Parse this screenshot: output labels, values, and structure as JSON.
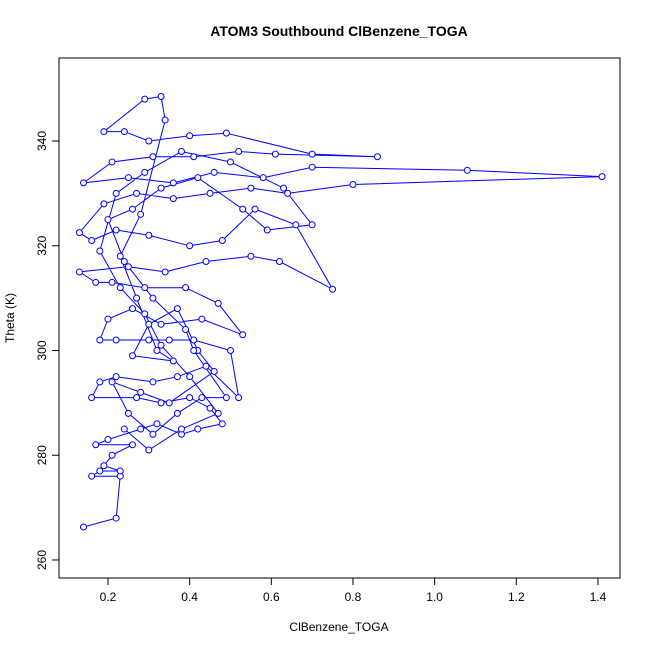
{
  "chart_data": {
    "type": "line",
    "title": "ATOM3 Southbound ClBenzene_TOGA",
    "xlabel": "ClBenzene_TOGA",
    "ylabel": "Theta (K)",
    "color": "#0000ff",
    "x": [
      0.14,
      0.22,
      0.23,
      0.16,
      0.18,
      0.23,
      0.19,
      0.21,
      0.26,
      0.17,
      0.2,
      0.28,
      0.32,
      0.38,
      0.42,
      0.48,
      0.45,
      0.4,
      0.33,
      0.27,
      0.16,
      0.18,
      0.22,
      0.31,
      0.37,
      0.44,
      0.52,
      0.5,
      0.41,
      0.35,
      0.3,
      0.22,
      0.18,
      0.2,
      0.26,
      0.33,
      0.43,
      0.53,
      0.47,
      0.39,
      0.29,
      0.21,
      0.17,
      0.13,
      0.25,
      0.34,
      0.44,
      0.55,
      0.62,
      0.75,
      0.66,
      0.56,
      0.48,
      0.4,
      0.3,
      0.22,
      0.16,
      0.13,
      0.19,
      0.27,
      0.36,
      0.45,
      0.55,
      0.64,
      0.8,
      1.41,
      1.08,
      0.7,
      0.58,
      0.46,
      0.36,
      0.25,
      0.14,
      0.21,
      0.31,
      0.41,
      0.52,
      0.61,
      0.86,
      0.7,
      0.49,
      0.4,
      0.3,
      0.24,
      0.19,
      0.29,
      0.33,
      0.34,
      0.28,
      0.23,
      0.27,
      0.32,
      0.36,
      0.26,
      0.3,
      0.37,
      0.42,
      0.46,
      0.35,
      0.28,
      0.21,
      0.25,
      0.31,
      0.37,
      0.43,
      0.49,
      0.41,
      0.39,
      0.31,
      0.24,
      0.2,
      0.26,
      0.33,
      0.42,
      0.53,
      0.59,
      0.7,
      0.63,
      0.5,
      0.38,
      0.29,
      0.22,
      0.18,
      0.23,
      0.29,
      0.33,
      0.4,
      0.47,
      0.38,
      0.3,
      0.24
    ],
    "values": [
      266.3,
      268,
      276,
      276,
      277,
      277,
      278,
      280,
      282,
      282,
      283,
      285,
      286,
      284,
      285,
      286,
      289,
      291,
      290,
      291,
      291,
      294,
      295,
      294,
      295,
      297,
      291,
      300,
      302,
      302,
      302,
      302,
      302,
      306,
      308,
      305,
      306,
      303,
      309,
      312,
      312,
      313,
      313,
      315,
      316,
      315,
      317,
      318,
      317,
      311.7,
      324,
      327,
      321,
      320,
      322,
      323,
      321,
      322.5,
      328,
      330,
      329,
      330,
      331,
      330,
      331.7,
      333.2,
      334.4,
      335,
      333,
      334,
      332,
      333,
      332,
      336,
      337,
      337,
      338,
      337.5,
      337,
      337.5,
      341.5,
      341,
      340,
      341.8,
      341.8,
      348,
      348.5,
      344,
      326,
      318,
      310,
      300,
      298,
      299,
      305,
      308,
      300,
      296,
      290,
      292,
      294,
      288,
      284,
      288,
      291,
      291,
      300,
      304,
      310,
      317,
      325,
      327,
      331,
      333,
      327,
      323,
      324,
      331,
      336,
      338,
      334,
      330,
      319,
      312,
      307,
      301,
      295,
      288,
      285,
      281,
      285
    ],
    "xlim": [
      0.08,
      1.454
    ],
    "xticks": [
      0.2,
      0.4,
      0.6,
      0.8,
      {
        "value": 1,
        "label": "1.0"
      },
      1.2,
      1.4
    ],
    "ylim": [
      256.56,
      355.85
    ],
    "yticks": [
      260,
      280,
      300,
      320,
      340
    ]
  }
}
